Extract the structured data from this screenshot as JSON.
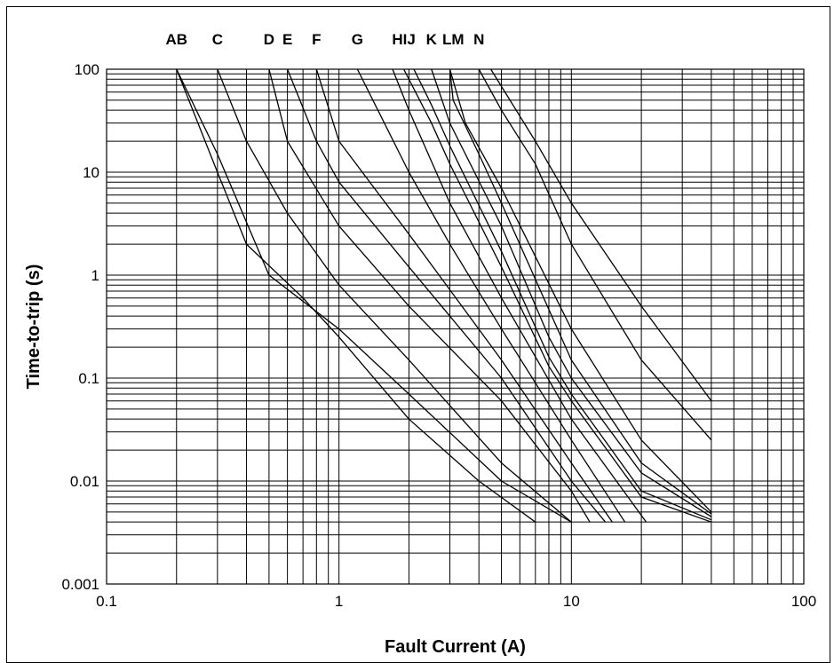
{
  "chart_data": {
    "type": "line",
    "xscale": "log",
    "yscale": "log",
    "xlim": [
      0.1,
      100
    ],
    "ylim": [
      0.001,
      100
    ],
    "grid": true,
    "title": "",
    "xlabel": "Fault Current (A)",
    "ylabel": "Time-to-trip (s)",
    "x_ticks": [
      "0.1",
      "1",
      "10",
      "100"
    ],
    "y_ticks": [
      "0.001",
      "0.01",
      "0.1",
      "1",
      "10",
      "100"
    ],
    "x_grid_values": [
      0.1,
      0.2,
      0.3,
      0.4,
      0.5,
      0.6,
      0.7,
      0.8,
      0.9,
      1,
      2,
      3,
      4,
      5,
      6,
      7,
      8,
      9,
      10,
      20,
      30,
      40,
      50,
      60,
      70,
      80,
      90,
      100
    ],
    "y_grid_values": [
      0.001,
      0.002,
      0.003,
      0.004,
      0.005,
      0.006,
      0.007,
      0.008,
      0.009,
      0.01,
      0.02,
      0.03,
      0.04,
      0.05,
      0.06,
      0.07,
      0.08,
      0.09,
      0.1,
      0.2,
      0.3,
      0.4,
      0.5,
      0.6,
      0.7,
      0.8,
      0.9,
      1,
      2,
      3,
      4,
      5,
      6,
      7,
      8,
      9,
      10,
      20,
      30,
      40,
      50,
      60,
      70,
      80,
      90,
      100
    ],
    "series": [
      {
        "name": "A",
        "x": [
          0.2,
          0.3,
          0.4,
          0.7,
          1,
          2,
          4,
          7
        ],
        "y": [
          100,
          10,
          2,
          0.6,
          0.25,
          0.04,
          0.01,
          0.004
        ]
      },
      {
        "name": "B",
        "x": [
          0.2,
          0.3,
          0.5,
          1,
          2,
          5,
          10
        ],
        "y": [
          100,
          15,
          1,
          0.3,
          0.07,
          0.01,
          0.004
        ]
      },
      {
        "name": "C",
        "x": [
          0.3,
          0.4,
          0.6,
          1,
          2,
          5,
          10
        ],
        "y": [
          100,
          20,
          4,
          0.8,
          0.15,
          0.015,
          0.004
        ]
      },
      {
        "name": "D",
        "x": [
          0.5,
          0.6,
          1,
          2,
          5,
          10,
          12
        ],
        "y": [
          100,
          20,
          3,
          0.5,
          0.06,
          0.008,
          0.004
        ]
      },
      {
        "name": "E",
        "x": [
          0.6,
          0.8,
          1,
          2,
          5,
          10,
          14
        ],
        "y": [
          100,
          20,
          8,
          1.2,
          0.1,
          0.01,
          0.004
        ]
      },
      {
        "name": "F",
        "x": [
          0.8,
          1,
          2,
          5,
          10,
          15
        ],
        "y": [
          100,
          20,
          2.5,
          0.15,
          0.015,
          0.004
        ]
      },
      {
        "name": "G",
        "x": [
          1.2,
          2,
          3,
          5,
          10,
          17
        ],
        "y": [
          100,
          10,
          2,
          0.3,
          0.025,
          0.004
        ]
      },
      {
        "name": "H",
        "x": [
          1.7,
          2,
          3,
          5,
          10,
          21
        ],
        "y": [
          100,
          40,
          5,
          0.6,
          0.04,
          0.004
        ]
      },
      {
        "name": "I",
        "x": [
          1.9,
          2.5,
          3,
          5,
          8,
          10,
          20,
          40
        ],
        "y": [
          100,
          30,
          12,
          1.2,
          0.13,
          0.06,
          0.007,
          0.004
        ]
      },
      {
        "name": "J",
        "x": [
          2.1,
          2.5,
          3,
          5,
          8,
          10,
          20,
          40
        ],
        "y": [
          100,
          45,
          18,
          1.7,
          0.16,
          0.07,
          0.008,
          0.0042
        ]
      },
      {
        "name": "K",
        "x": [
          2.5,
          3,
          5,
          8,
          10,
          20,
          40
        ],
        "y": [
          100,
          30,
          3,
          0.25,
          0.1,
          0.012,
          0.0045
        ]
      },
      {
        "name": "L",
        "x": [
          3,
          3.1,
          4,
          5,
          10,
          20,
          40
        ],
        "y": [
          100,
          50,
          15,
          5,
          0.15,
          0.015,
          0.0048
        ]
      },
      {
        "name": "M",
        "x": [
          3,
          3.5,
          5,
          10,
          20,
          40
        ],
        "y": [
          100,
          30,
          7,
          0.3,
          0.025,
          0.005
        ]
      },
      {
        "name": "N",
        "x": [
          4,
          5,
          7,
          10,
          20,
          40
        ],
        "y": [
          100,
          40,
          12,
          2,
          0.15,
          0.025
        ]
      },
      {
        "name": "",
        "x": [
          4.5,
          7,
          10,
          20,
          40
        ],
        "y": [
          100,
          20,
          5,
          0.5,
          0.06
        ]
      }
    ],
    "curve_labels": [
      {
        "text": "AB",
        "x": 0.2
      },
      {
        "text": "C",
        "x": 0.3
      },
      {
        "text": "D",
        "x": 0.5
      },
      {
        "text": "E",
        "x": 0.6
      },
      {
        "text": "F",
        "x": 0.8
      },
      {
        "text": "G",
        "x": 1.2
      },
      {
        "text": "HIJ",
        "x": 1.9
      },
      {
        "text": "K",
        "x": 2.5
      },
      {
        "text": "LM",
        "x": 3.1
      },
      {
        "text": "N",
        "x": 4
      }
    ]
  }
}
